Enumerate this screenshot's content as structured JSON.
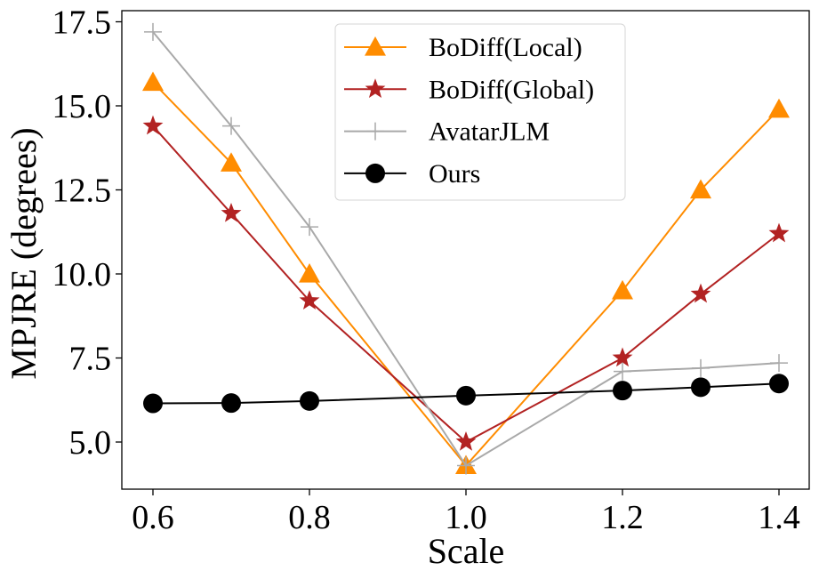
{
  "chart_data": {
    "type": "line",
    "title": "",
    "xlabel": "Scale",
    "ylabel": "MPJRE (degrees)",
    "xlim": [
      0.56,
      1.44
    ],
    "ylim": [
      3.6,
      17.8
    ],
    "xticks": [
      0.6,
      0.8,
      1.0,
      1.2,
      1.4
    ],
    "xtick_labels": [
      "0.6",
      "0.8",
      "1.0",
      "1.2",
      "1.4"
    ],
    "yticks": [
      5.0,
      7.5,
      10.0,
      12.5,
      15.0,
      17.5
    ],
    "ytick_labels": [
      "5.0",
      "7.5",
      "10.0",
      "12.5",
      "15.0",
      "17.5"
    ],
    "grid": false,
    "legend_position": "top-center",
    "x": [
      0.6,
      0.7,
      0.8,
      1.0,
      1.2,
      1.3,
      1.4
    ],
    "series": [
      {
        "name": "BoDiff(Local)",
        "color": "#ff8c00",
        "marker": "triangle",
        "values": [
          15.7,
          13.3,
          10.0,
          4.3,
          9.5,
          12.5,
          14.9
        ]
      },
      {
        "name": "BoDiff(Global)",
        "color": "#b22222",
        "marker": "star",
        "values": [
          14.4,
          11.8,
          9.2,
          5.0,
          7.5,
          9.4,
          11.2
        ]
      },
      {
        "name": "AvatarJLM",
        "color": "#a9a9a9",
        "marker": "plus",
        "values": [
          17.2,
          14.4,
          11.4,
          4.3,
          7.1,
          7.2,
          7.35
        ]
      },
      {
        "name": "Ours",
        "color": "#000000",
        "marker": "circle",
        "values": [
          6.15,
          6.16,
          6.22,
          6.38,
          6.53,
          6.63,
          6.74
        ]
      }
    ]
  }
}
